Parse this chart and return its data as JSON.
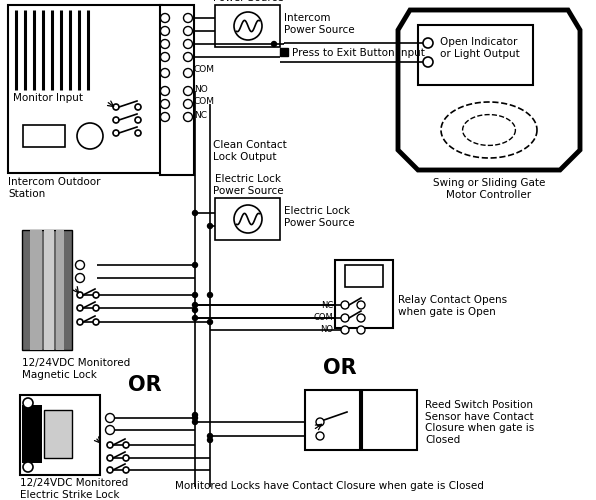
{
  "bg_color": "#ffffff",
  "gray_dark": "#666666",
  "gray_mid": "#aaaaaa",
  "gray_light": "#cccccc",
  "black": "#000000",
  "labels": {
    "intercom_panel": "Intercom Outdoor\nStation",
    "monitor_input": "Monitor Input",
    "mag_lock": "12/24VDC Monitored\nMagnetic Lock",
    "strike_lock": "12/24VDC Monitored\nElectric Strike Lock",
    "intercom_ps": "Intercom\nPower Source",
    "press_exit": "Press to Exit Button Input",
    "clean_contact": "Clean Contact\nLock Output",
    "electric_lock_ps": "Electric Lock\nPower Source",
    "gate_controller": "Swing or Sliding Gate\nMotor Controller",
    "open_indicator": "Open Indicator\nor Light Output",
    "relay_contact": "Relay Contact Opens\nwhen gate is Open",
    "or1": "OR",
    "or2": "OR",
    "reed_switch": "Reed Switch Position\nSensor have Contact\nClosure when gate is\nClosed",
    "footer": "Monitored Locks have Contact Closure when gate is Closed",
    "com": "COM",
    "no": "NO",
    "nc": "NC"
  },
  "figsize": [
    5.96,
    5.0
  ],
  "dpi": 100
}
